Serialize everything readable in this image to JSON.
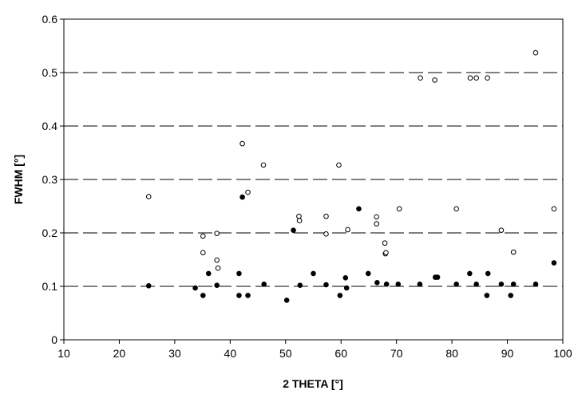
{
  "chart_data": {
    "type": "scatter",
    "xlabel": "2 THETA [°]",
    "ylabel": "FWHM [°]",
    "xlim": [
      10,
      100
    ],
    "ylim": [
      0,
      0.6
    ],
    "x_ticks": [
      10,
      20,
      30,
      40,
      50,
      60,
      70,
      80,
      90,
      100
    ],
    "y_ticks": [
      0,
      0.1,
      0.2,
      0.3,
      0.4,
      0.5,
      0.6
    ],
    "gridlines": "horizontal dashed",
    "legend": "none",
    "series": [
      {
        "marker": "open-circle",
        "color": "#000000",
        "points": [
          [
            25.3,
            0.268
          ],
          [
            35.1,
            0.194
          ],
          [
            35.1,
            0.163
          ],
          [
            37.6,
            0.199
          ],
          [
            37.6,
            0.149
          ],
          [
            37.8,
            0.134
          ],
          [
            42.2,
            0.367
          ],
          [
            43.2,
            0.276
          ],
          [
            46.0,
            0.327
          ],
          [
            52.4,
            0.231
          ],
          [
            52.5,
            0.223
          ],
          [
            57.3,
            0.231
          ],
          [
            57.3,
            0.198
          ],
          [
            59.6,
            0.327
          ],
          [
            61.2,
            0.206
          ],
          [
            66.4,
            0.23
          ],
          [
            66.4,
            0.217
          ],
          [
            67.9,
            0.181
          ],
          [
            68.0,
            0.161
          ],
          [
            68.1,
            0.163
          ],
          [
            70.5,
            0.245
          ],
          [
            74.3,
            0.49
          ],
          [
            76.9,
            0.486
          ],
          [
            80.8,
            0.245
          ],
          [
            83.3,
            0.49
          ],
          [
            84.4,
            0.49
          ],
          [
            86.4,
            0.49
          ],
          [
            88.9,
            0.205
          ],
          [
            91.1,
            0.164
          ],
          [
            95.1,
            0.537
          ],
          [
            98.4,
            0.245
          ]
        ]
      },
      {
        "marker": "filled-circle",
        "color": "#000000",
        "points": [
          [
            25.3,
            0.101
          ],
          [
            33.7,
            0.097
          ],
          [
            35.1,
            0.083
          ],
          [
            36.1,
            0.124
          ],
          [
            37.6,
            0.102
          ],
          [
            41.6,
            0.124
          ],
          [
            41.6,
            0.083
          ],
          [
            42.2,
            0.267
          ],
          [
            43.2,
            0.083
          ],
          [
            46.1,
            0.104
          ],
          [
            50.2,
            0.074
          ],
          [
            51.4,
            0.205
          ],
          [
            52.6,
            0.102
          ],
          [
            55.0,
            0.124
          ],
          [
            57.3,
            0.103
          ],
          [
            59.8,
            0.083
          ],
          [
            60.8,
            0.116
          ],
          [
            61.0,
            0.097
          ],
          [
            63.2,
            0.245
          ],
          [
            64.9,
            0.124
          ],
          [
            66.5,
            0.107
          ],
          [
            68.2,
            0.104
          ],
          [
            70.3,
            0.104
          ],
          [
            74.2,
            0.104
          ],
          [
            77.0,
            0.117
          ],
          [
            77.4,
            0.117
          ],
          [
            80.8,
            0.104
          ],
          [
            83.2,
            0.124
          ],
          [
            84.4,
            0.104
          ],
          [
            86.3,
            0.083
          ],
          [
            86.5,
            0.124
          ],
          [
            88.9,
            0.104
          ],
          [
            90.6,
            0.083
          ],
          [
            91.1,
            0.104
          ],
          [
            95.1,
            0.104
          ],
          [
            98.4,
            0.144
          ]
        ]
      }
    ]
  }
}
